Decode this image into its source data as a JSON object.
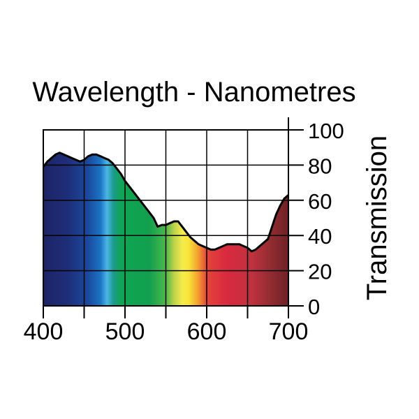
{
  "chart_data": {
    "type": "area",
    "title": "Wavelength - Nanometres",
    "xlabel": "",
    "ylabel": "Transmission",
    "xlim": [
      400,
      700
    ],
    "ylim": [
      0,
      100
    ],
    "x_ticks": [
      400,
      450,
      500,
      550,
      600,
      650,
      700
    ],
    "x_tick_labels": [
      "400",
      "500",
      "600",
      "700"
    ],
    "y_ticks": [
      0,
      20,
      40,
      60,
      80,
      100
    ],
    "y_tick_labels": [
      "0",
      "20",
      "40",
      "60",
      "80",
      "100"
    ],
    "grid": true,
    "series": [
      {
        "name": "Transmission",
        "x": [
          400,
          405,
          410,
          415,
          420,
          425,
          430,
          435,
          440,
          445,
          450,
          455,
          460,
          465,
          470,
          475,
          480,
          485,
          490,
          495,
          500,
          505,
          510,
          515,
          520,
          525,
          530,
          535,
          540,
          545,
          550,
          555,
          560,
          565,
          570,
          575,
          580,
          585,
          590,
          595,
          600,
          605,
          610,
          615,
          620,
          625,
          630,
          635,
          640,
          645,
          650,
          655,
          660,
          665,
          670,
          675,
          680,
          685,
          690,
          695,
          700
        ],
        "values": [
          79,
          82,
          84,
          86,
          87,
          86,
          85,
          84,
          83,
          82,
          83,
          85,
          86,
          86,
          85,
          84,
          83,
          81,
          78,
          75,
          71,
          68,
          65,
          62,
          59,
          56,
          53,
          50,
          45,
          46,
          46,
          47,
          48,
          48,
          45,
          42,
          39,
          37,
          35,
          34,
          33,
          32,
          32,
          33,
          34,
          35,
          35,
          35,
          35,
          34,
          33,
          31,
          32,
          34,
          36,
          38,
          45,
          52,
          57,
          61,
          63
        ]
      }
    ],
    "spectrum_colors": [
      {
        "x": 400,
        "color": "#1d2466"
      },
      {
        "x": 430,
        "color": "#1e2e78"
      },
      {
        "x": 455,
        "color": "#1a4a9e"
      },
      {
        "x": 470,
        "color": "#1c74c4"
      },
      {
        "x": 478,
        "color": "#4ab6e6"
      },
      {
        "x": 486,
        "color": "#1c9a8a"
      },
      {
        "x": 495,
        "color": "#0fa554"
      },
      {
        "x": 530,
        "color": "#12a04e"
      },
      {
        "x": 550,
        "color": "#4db84a"
      },
      {
        "x": 560,
        "color": "#bcd24a"
      },
      {
        "x": 570,
        "color": "#f4ec4a"
      },
      {
        "x": 578,
        "color": "#f8e43a"
      },
      {
        "x": 590,
        "color": "#f29a2e"
      },
      {
        "x": 600,
        "color": "#e4443a"
      },
      {
        "x": 625,
        "color": "#d9293e"
      },
      {
        "x": 655,
        "color": "#c0323f"
      },
      {
        "x": 680,
        "color": "#8e2b30"
      },
      {
        "x": 700,
        "color": "#6e2226"
      }
    ],
    "line_color": "#000000",
    "grid_color": "#000000"
  }
}
